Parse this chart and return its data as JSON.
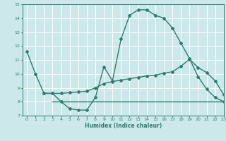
{
  "curve1_x": [
    0,
    1,
    2,
    3,
    4,
    5,
    6,
    7,
    8,
    9,
    10,
    11,
    12,
    13,
    14,
    15,
    16,
    17,
    18,
    19,
    20,
    21,
    22,
    23
  ],
  "curve1_y": [
    11.6,
    10.0,
    8.6,
    8.6,
    8.0,
    7.5,
    7.4,
    7.4,
    8.3,
    10.5,
    9.5,
    12.5,
    14.2,
    14.6,
    14.6,
    14.2,
    14.0,
    13.3,
    12.2,
    11.1,
    9.8,
    8.9,
    8.3,
    8.0
  ],
  "curve2_x": [
    2,
    3,
    4,
    5,
    6,
    7,
    8,
    9,
    10,
    11,
    12,
    13,
    14,
    15,
    16,
    17,
    18,
    19,
    20,
    21,
    22,
    23
  ],
  "curve2_y": [
    8.6,
    8.6,
    8.6,
    8.65,
    8.7,
    8.75,
    9.0,
    9.3,
    9.45,
    9.55,
    9.65,
    9.75,
    9.85,
    9.9,
    10.05,
    10.15,
    10.55,
    11.05,
    10.45,
    10.1,
    9.5,
    8.5
  ],
  "curve3_x": [
    3,
    4,
    5,
    6,
    7,
    8,
    9,
    10,
    11,
    12,
    13,
    14,
    15,
    16,
    17,
    18,
    19,
    20,
    21,
    22,
    23
  ],
  "curve3_y": [
    8.0,
    8.0,
    8.0,
    8.0,
    8.0,
    8.0,
    8.0,
    8.0,
    8.0,
    8.0,
    8.0,
    8.0,
    8.0,
    8.0,
    8.0,
    8.0,
    8.0,
    8.0,
    8.0,
    8.0,
    8.0
  ],
  "line_color": "#2e7d6e",
  "bg_color": "#cce8ea",
  "grid_color": "#b0d8da",
  "xlabel": "Humidex (Indice chaleur)",
  "ylim": [
    7,
    15
  ],
  "xlim": [
    -0.5,
    23
  ],
  "yticks": [
    7,
    8,
    9,
    10,
    11,
    12,
    13,
    14,
    15
  ],
  "xticks": [
    0,
    1,
    2,
    3,
    4,
    5,
    6,
    7,
    8,
    9,
    10,
    11,
    12,
    13,
    14,
    15,
    16,
    17,
    18,
    19,
    20,
    21,
    22,
    23
  ]
}
